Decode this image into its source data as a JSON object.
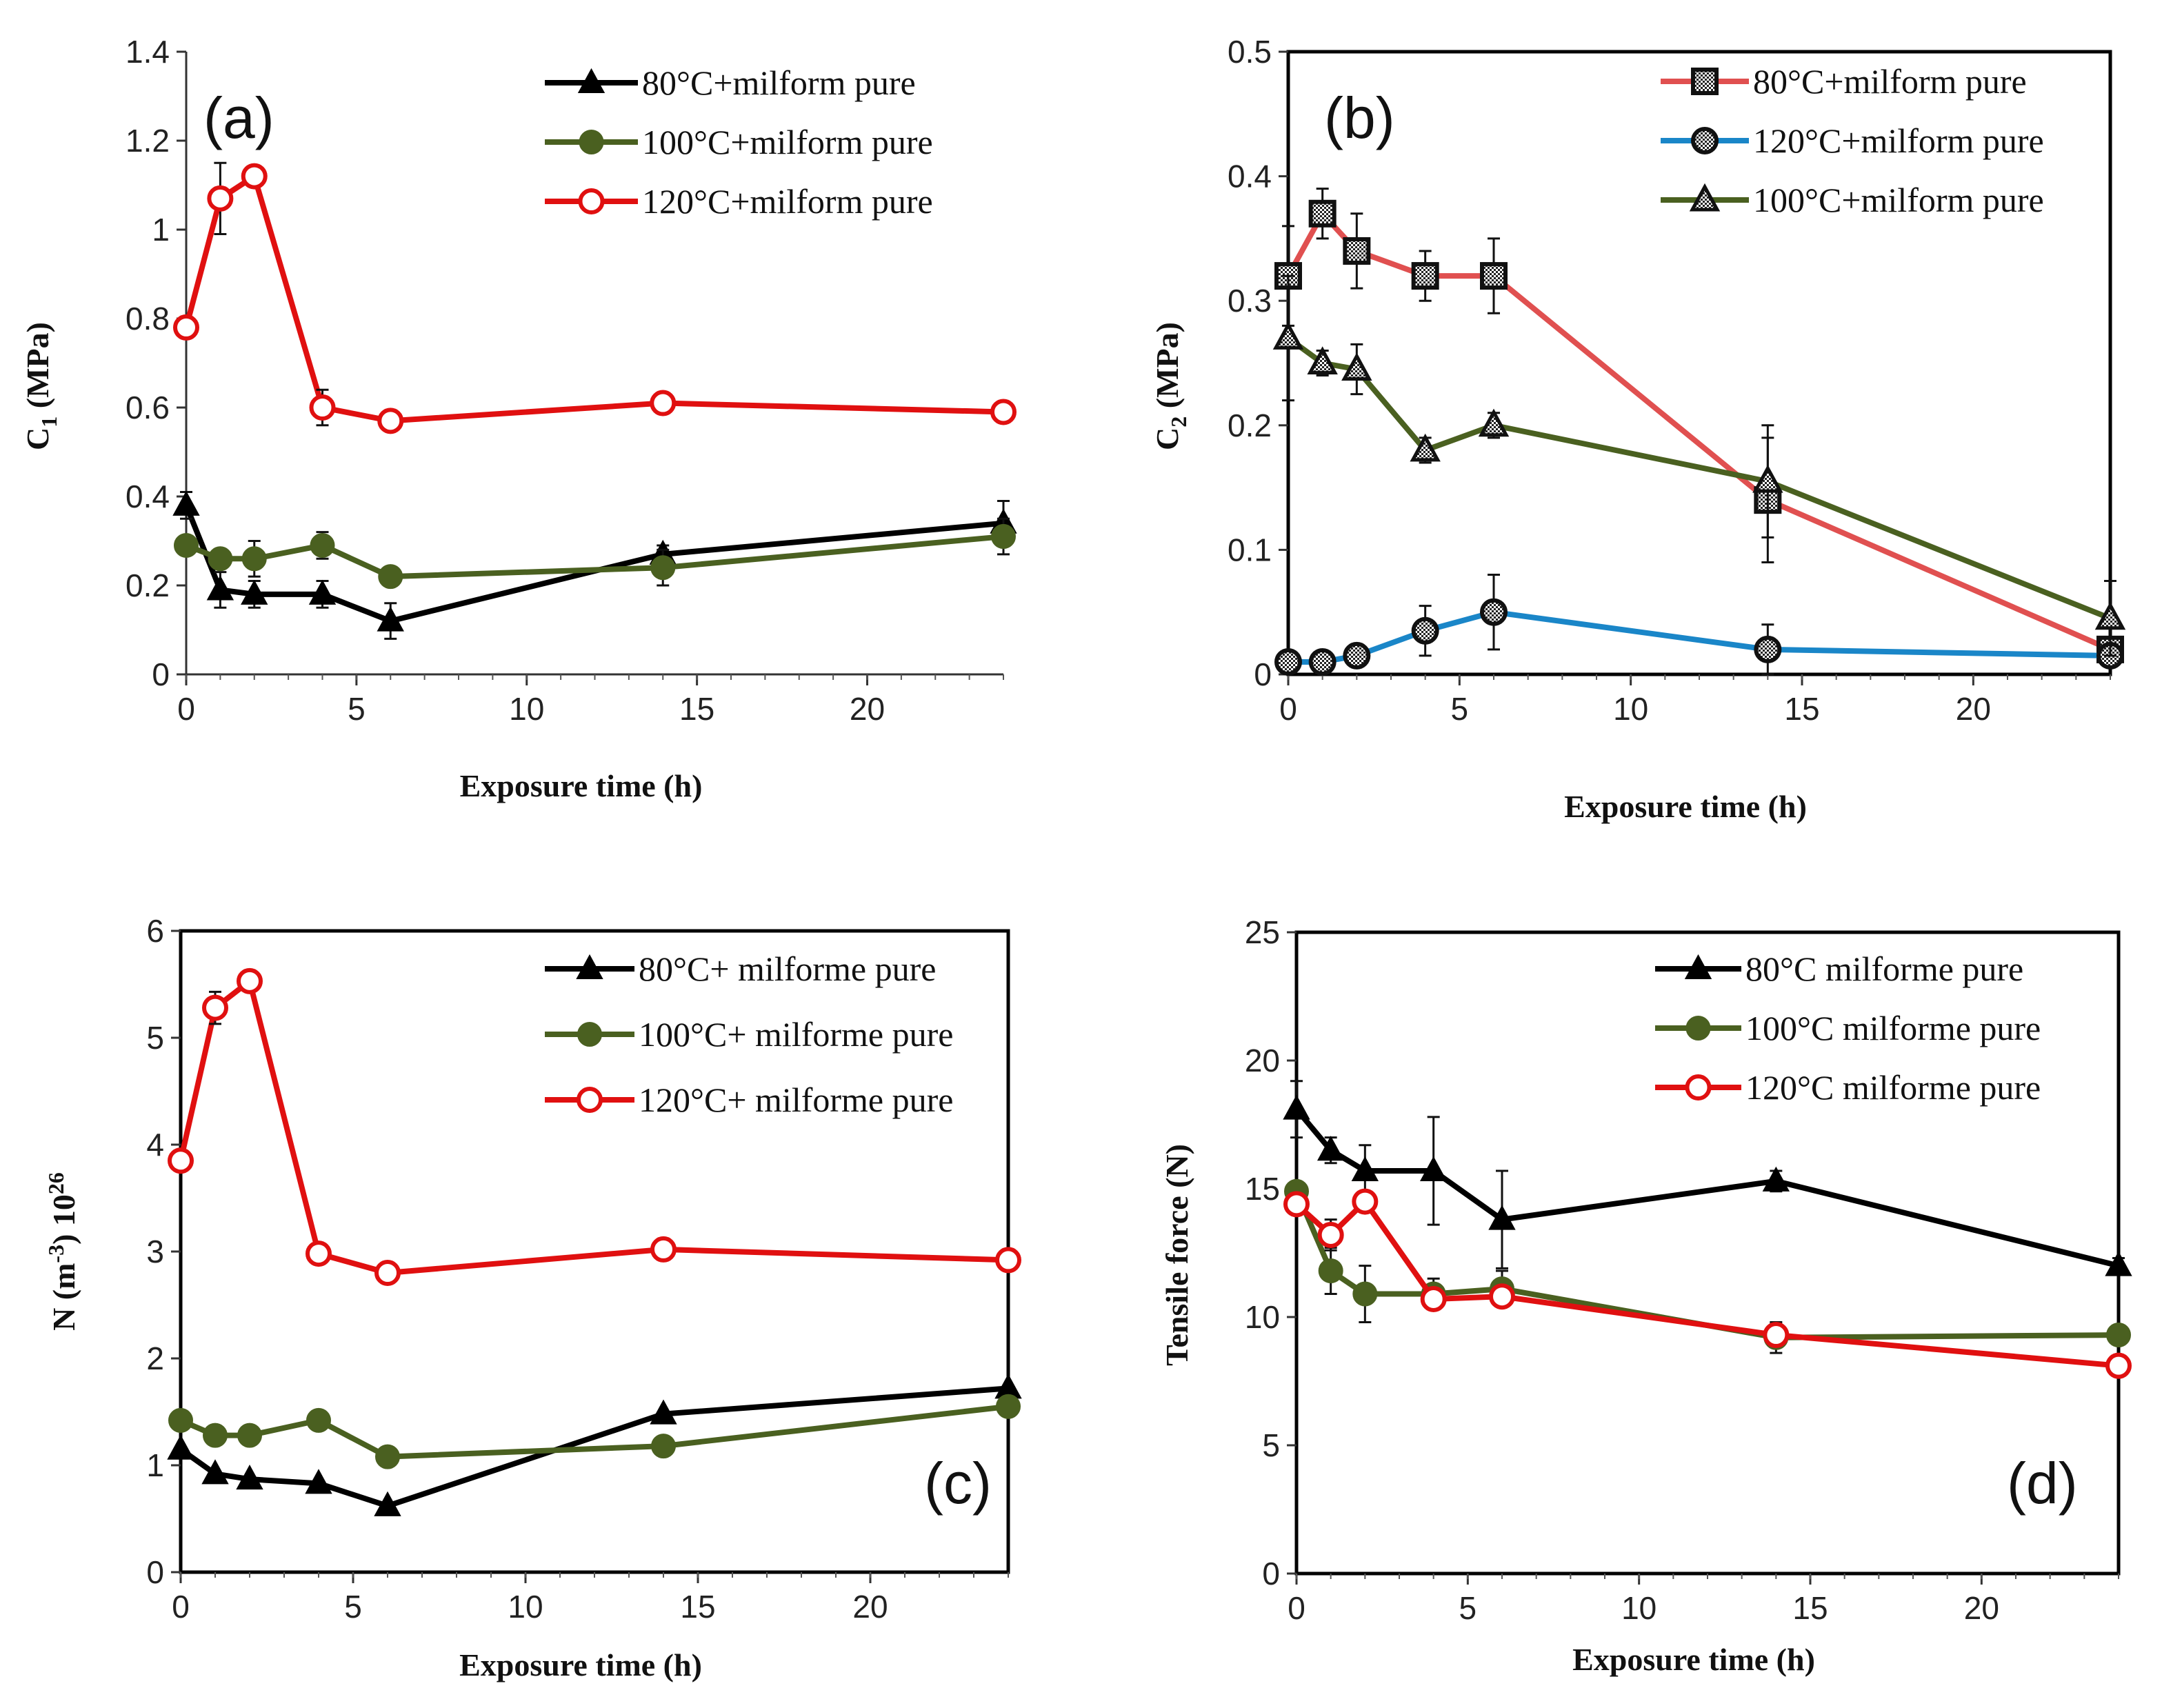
{
  "colors": {
    "black": "#000000",
    "green": "#4a6020",
    "red": "#e01010",
    "salmon": "#e05050",
    "blue": "#1a86c8"
  },
  "chart_data": [
    {
      "id": "a",
      "type": "line",
      "panel_label": "(a)",
      "xlabel": "Exposure  time  (h)",
      "ylabel": {
        "main": "C",
        "sub": "1",
        "rest": " (MPa)"
      },
      "xlim": [
        0,
        24
      ],
      "ylim": [
        0,
        1.4
      ],
      "xticks": [
        "0",
        "5",
        "10",
        "15",
        "20"
      ],
      "xtick_values": [
        0,
        5,
        10,
        15,
        20
      ],
      "yticks": [
        "0",
        "0.2",
        "0.4",
        "0.6",
        "0.8",
        "1",
        "1.2",
        "1.4"
      ],
      "ytick_values": [
        0,
        0.2,
        0.4,
        0.6,
        0.8,
        1,
        1.2,
        1.4
      ],
      "x": [
        0,
        1,
        2,
        4,
        6,
        14,
        24
      ],
      "series": [
        {
          "name": "80°C+milform pure",
          "color": "#000000",
          "marker": "triangle-filled",
          "values": [
            0.38,
            0.19,
            0.18,
            0.18,
            0.12,
            0.27,
            0.34
          ],
          "errors": [
            0.03,
            0.04,
            0.03,
            0.03,
            0.04,
            0.02,
            0.05
          ]
        },
        {
          "name": "100°C+milform pure",
          "color": "#4a6020",
          "marker": "circle-filled",
          "values": [
            0.29,
            0.26,
            0.26,
            0.29,
            0.22,
            0.24,
            0.31
          ],
          "errors": [
            0.02,
            0.02,
            0.04,
            0.03,
            0.02,
            0.04,
            0.04
          ]
        },
        {
          "name": "120°C+milform pure",
          "color": "#e01010",
          "marker": "circle-open",
          "values": [
            0.78,
            1.07,
            1.12,
            0.6,
            0.57,
            0.61,
            0.59
          ],
          "errors": [
            0.01,
            0.08,
            0.01,
            0.04,
            0.02,
            0.01,
            0.01
          ]
        }
      ]
    },
    {
      "id": "b",
      "type": "line",
      "panel_label": "(b)",
      "xlabel": "Exposure  time  (h)",
      "ylabel": {
        "main": "C",
        "sub": "2",
        "rest": " (MPa)"
      },
      "xlim": [
        0,
        24
      ],
      "ylim": [
        0,
        0.5
      ],
      "xticks": [
        "0",
        "5",
        "10",
        "15",
        "20"
      ],
      "xtick_values": [
        0,
        5,
        10,
        15,
        20
      ],
      "yticks": [
        "0",
        "0.1",
        "0.2",
        "0.3",
        "0.4",
        "0.5"
      ],
      "ytick_values": [
        0,
        0.1,
        0.2,
        0.3,
        0.4,
        0.5
      ],
      "x": [
        0,
        1,
        2,
        4,
        6,
        14,
        24
      ],
      "series": [
        {
          "name": "80°C+milform pure",
          "color": "#e05050",
          "marker": "square-hatched",
          "values": [
            0.32,
            0.37,
            0.34,
            0.32,
            0.32,
            0.14,
            0.02
          ],
          "errors": [
            0.04,
            0.02,
            0.03,
            0.02,
            0.03,
            0.05,
            0.01
          ]
        },
        {
          "name": "120°C+milform pure",
          "color": "#1a86c8",
          "marker": "circle-hatched",
          "values": [
            0.01,
            0.01,
            0.015,
            0.035,
            0.05,
            0.02,
            0.015
          ],
          "errors": [
            0.005,
            0.005,
            0.005,
            0.02,
            0.03,
            0.02,
            0.005
          ]
        },
        {
          "name": "100°C+milform pure",
          "color": "#4a6020",
          "marker": "triangle-hatched",
          "values": [
            0.27,
            0.25,
            0.245,
            0.18,
            0.2,
            0.155,
            0.045
          ],
          "errors": [
            0.05,
            0.01,
            0.02,
            0.01,
            0.01,
            0.045,
            0.03
          ]
        }
      ]
    },
    {
      "id": "c",
      "type": "line",
      "panel_label": "(c)",
      "xlabel": "Exposure  time  (h)",
      "ylabel": {
        "main": "N (m",
        "sup": "-3",
        "rest": ") 10",
        "sup2": "26"
      },
      "xlim": [
        0,
        24
      ],
      "ylim": [
        0,
        6
      ],
      "xticks": [
        "0",
        "5",
        "10",
        "15",
        "20"
      ],
      "xtick_values": [
        0,
        5,
        10,
        15,
        20
      ],
      "yticks": [
        "0",
        "1",
        "2",
        "3",
        "4",
        "5",
        "6"
      ],
      "ytick_values": [
        0,
        1,
        2,
        3,
        4,
        5,
        6
      ],
      "x": [
        0,
        1,
        2,
        4,
        6,
        14,
        24
      ],
      "series": [
        {
          "name": "80°C+ milforme pure",
          "color": "#000000",
          "marker": "triangle-filled",
          "values": [
            1.15,
            0.92,
            0.87,
            0.83,
            0.62,
            1.48,
            1.72
          ],
          "errors": [
            0,
            0,
            0,
            0,
            0,
            0,
            0
          ]
        },
        {
          "name": "100°C+ milforme pure",
          "color": "#4a6020",
          "marker": "circle-filled",
          "values": [
            1.42,
            1.28,
            1.28,
            1.42,
            1.08,
            1.18,
            1.55
          ],
          "errors": [
            0,
            0,
            0,
            0,
            0,
            0,
            0
          ]
        },
        {
          "name": "120°C+ milforme pure",
          "color": "#e01010",
          "marker": "circle-open",
          "values": [
            3.85,
            5.28,
            5.53,
            2.98,
            2.8,
            3.02,
            2.92
          ],
          "errors": [
            0,
            0.15,
            0,
            0,
            0,
            0,
            0
          ]
        }
      ]
    },
    {
      "id": "d",
      "type": "line",
      "panel_label": "(d)",
      "xlabel": "Exposure  time  (h)",
      "ylabel": {
        "main": "Tensile force (N)"
      },
      "xlim": [
        0,
        24
      ],
      "ylim": [
        0,
        25
      ],
      "xticks": [
        "0",
        "5",
        "10",
        "15",
        "20"
      ],
      "xtick_values": [
        0,
        5,
        10,
        15,
        20
      ],
      "yticks": [
        "0",
        "5",
        "10",
        "15",
        "20",
        "25"
      ],
      "ytick_values": [
        0,
        5,
        10,
        15,
        20,
        25
      ],
      "x": [
        0,
        1,
        2,
        4,
        6,
        14,
        24
      ],
      "series": [
        {
          "name": "80°C milforme pure",
          "color": "#000000",
          "marker": "triangle-filled",
          "values": [
            18.1,
            16.5,
            15.7,
            15.7,
            13.8,
            15.3,
            12
          ],
          "errors": [
            1.1,
            0.5,
            1,
            2.1,
            1.9,
            0.4,
            0.3
          ]
        },
        {
          "name": "100°C milforme pure",
          "color": "#4a6020",
          "marker": "circle-filled",
          "values": [
            14.9,
            11.8,
            10.9,
            10.9,
            11.1,
            9.2,
            9.3
          ],
          "errors": [
            0.3,
            0.9,
            1.1,
            0.6,
            0.7,
            0.6,
            0.2
          ]
        },
        {
          "name": "120°C milforme pure",
          "color": "#e01010",
          "marker": "circle-open",
          "values": [
            14.4,
            13.2,
            14.5,
            10.7,
            10.8,
            9.3,
            8.1
          ],
          "errors": [
            0.2,
            0.6,
            0.3,
            0.3,
            0.2,
            0.3,
            0.2
          ]
        }
      ]
    }
  ]
}
